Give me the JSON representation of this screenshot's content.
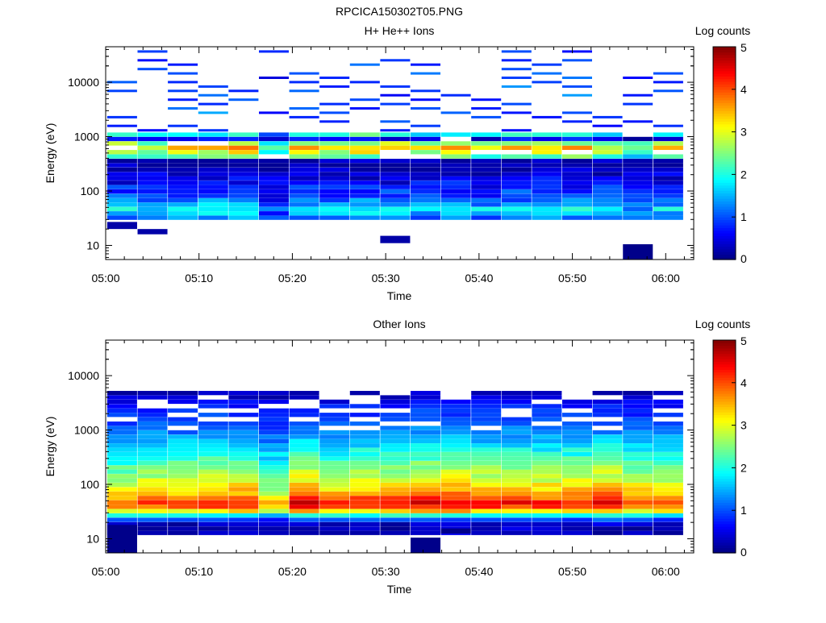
{
  "figure_title": "RPCICA150302T05.PNG",
  "chart_data": [
    {
      "type": "heatmap",
      "title": "H+ He++ Ions",
      "xlabel": "Time",
      "ylabel": "Energy (eV)",
      "colorbar_label": "Log counts",
      "colorbar_ticks": [
        "0",
        "1",
        "2",
        "3",
        "4",
        "5"
      ],
      "colorbar_range": [
        0,
        5
      ],
      "colormap": "jet",
      "y_scale": "log",
      "ylim": [
        5.5,
        45000
      ],
      "y_ticks": [
        {
          "v": 10,
          "label": "10"
        },
        {
          "v": 100,
          "label": "100"
        },
        {
          "v": 1000,
          "label": "1000"
        },
        {
          "v": 10000,
          "label": "10000"
        }
      ],
      "x_range_minutes": [
        0,
        63
      ],
      "x_ticks": [
        "05:00",
        "05:10",
        "05:20",
        "05:30",
        "05:40",
        "05:50",
        "06:00"
      ],
      "time_bins_start": [
        "05:00:10",
        "05:03:25",
        "05:06:40",
        "05:09:55",
        "05:13:10",
        "05:16:25",
        "05:19:40",
        "05:22:55",
        "05:26:10",
        "05:29:25",
        "05:32:40",
        "05:35:55",
        "05:39:10",
        "05:42:25",
        "05:45:40",
        "05:48:55",
        "05:52:10",
        "05:55:25",
        "05:58:40"
      ],
      "time_bin_minutes": 3.2,
      "energy_bins_eV": [
        7.3,
        8.8,
        10.6,
        12.8,
        15.4,
        18.5,
        22.3,
        26.8,
        32.3,
        38.8,
        46.7,
        56.2,
        67.7,
        81.4,
        98,
        118,
        142,
        171,
        205,
        247,
        298,
        358,
        431,
        519,
        624,
        751,
        904,
        1088,
        1309,
        1576,
        1896,
        2282,
        2747,
        3306,
        3978,
        4788,
        5762,
        6935,
        8346,
        10045,
        12089,
        14550,
        17511,
        21075,
        25364,
        30526,
        36738
      ],
      "high_energy_sparse_profile": [
        0,
        0,
        0,
        1.0,
        0,
        0.6,
        0,
        0.8,
        0,
        0.5,
        0,
        0.7,
        0,
        0.4,
        0,
        0.6
      ],
      "low_energy_profile": [
        0,
        0,
        0,
        0,
        0.25,
        0,
        0,
        0.5,
        1.3,
        1.6,
        1.9,
        1.5,
        1.2,
        1.0,
        0.9,
        0.8,
        0.6,
        0.5,
        0.4,
        0.2
      ],
      "mid_energy_profile": [
        0.9,
        2.3,
        2.6,
        2.5,
        2.8,
        3.2,
        3.4,
        3.4,
        2.6,
        1.6,
        0.6,
        1.4,
        2.0,
        2.4,
        2.2
      ],
      "column_intensity": [
        1.0,
        0.9,
        0.95,
        1.05,
        1.1,
        0.6,
        1.0,
        0.95,
        1.05,
        1.0,
        0.95,
        1.0,
        0.9,
        1.0,
        1.0,
        1.0,
        0.9,
        0.75,
        0.95
      ],
      "isolated_pixels": [
        {
          "time": "05:00:10",
          "e_min": 20,
          "e_max": 27,
          "level": 0.2
        },
        {
          "time": "05:03:25",
          "e_min": 16,
          "e_max": 20,
          "level": 0.2
        },
        {
          "time": "05:29:25",
          "e_min": 11,
          "e_max": 15,
          "level": 0.2
        },
        {
          "time": "05:55:25",
          "e_min": 5.5,
          "e_max": 10.5,
          "level": 0.05
        }
      ]
    },
    {
      "type": "heatmap",
      "title": "Other Ions",
      "xlabel": "Time",
      "ylabel": "Energy (eV)",
      "colorbar_label": "Log counts",
      "colorbar_ticks": [
        "0",
        "1",
        "2",
        "3",
        "4",
        "5"
      ],
      "colorbar_range": [
        0,
        5
      ],
      "colormap": "jet",
      "y_scale": "log",
      "ylim": [
        5.5,
        45000
      ],
      "y_ticks": [
        {
          "v": 10,
          "label": "10"
        },
        {
          "v": 100,
          "label": "100"
        },
        {
          "v": 1000,
          "label": "1000"
        },
        {
          "v": 10000,
          "label": "10000"
        }
      ],
      "x_range_minutes": [
        0,
        63
      ],
      "x_ticks": [
        "05:00",
        "05:10",
        "05:20",
        "05:30",
        "05:40",
        "05:50",
        "06:00"
      ],
      "time_bins_start": [
        "05:00:10",
        "05:03:25",
        "05:06:40",
        "05:09:55",
        "05:13:10",
        "05:16:25",
        "05:19:40",
        "05:22:55",
        "05:26:10",
        "05:29:25",
        "05:32:40",
        "05:35:55",
        "05:39:10",
        "05:42:25",
        "05:45:40",
        "05:48:55",
        "05:52:10",
        "05:55:25",
        "05:58:40"
      ],
      "time_bin_minutes": 3.2,
      "energy_bins_eV": [
        7.3,
        8.8,
        10.6,
        12.8,
        15.4,
        18.5,
        22.3,
        26.8,
        32.3,
        38.8,
        46.7,
        56.2,
        67.7,
        81.4,
        98,
        118,
        142,
        171,
        205,
        247,
        298,
        358,
        431,
        519,
        624,
        751,
        904,
        1088,
        1309,
        1576,
        1896,
        2282,
        2747,
        3306,
        3978,
        4788,
        5762,
        6935,
        8346,
        10045,
        12089,
        14550,
        17511,
        21075,
        25364,
        30526,
        36738
      ],
      "spectrum_profile": [
        0,
        0,
        0,
        0.3,
        0.3,
        0.3,
        1.0,
        2.0,
        3.3,
        4.1,
        4.3,
        3.9,
        3.6,
        3.4,
        3.2,
        3.0,
        2.8,
        2.65,
        2.5,
        2.35,
        2.2,
        2.05,
        1.9,
        1.75,
        1.6,
        1.45,
        1.3,
        1.15,
        1.0,
        0.9,
        0.85,
        0.8,
        0.7,
        0.5,
        0.3,
        0.25,
        0,
        0,
        0,
        0,
        0,
        0,
        0,
        0,
        0,
        0,
        0
      ],
      "column_intensity": [
        0.9,
        0.95,
        0.95,
        1.0,
        1.0,
        0.8,
        1.05,
        0.95,
        1.0,
        1.0,
        1.05,
        1.05,
        1.0,
        1.0,
        0.98,
        1.0,
        1.05,
        0.95,
        0.95
      ],
      "isolated_pixels": [
        {
          "time": "05:00:10",
          "e_min": 5.5,
          "e_max": 18,
          "level": 0.05
        },
        {
          "time": "05:32:40",
          "e_min": 5.5,
          "e_max": 10.5,
          "level": 0.05
        },
        {
          "time": "05:35:55",
          "e_min": 12.5,
          "e_max": 15.5,
          "level": 0.05
        }
      ]
    }
  ]
}
